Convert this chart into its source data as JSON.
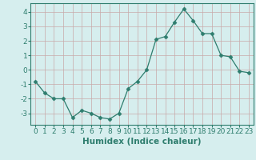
{
  "x": [
    0,
    1,
    2,
    3,
    4,
    5,
    6,
    7,
    8,
    9,
    10,
    11,
    12,
    13,
    14,
    15,
    16,
    17,
    18,
    19,
    20,
    21,
    22,
    23
  ],
  "y": [
    -0.8,
    -1.6,
    -2.0,
    -2.0,
    -3.3,
    -2.8,
    -3.0,
    -3.3,
    -3.4,
    -3.0,
    -1.3,
    -0.8,
    0.0,
    2.1,
    2.3,
    3.3,
    4.2,
    3.4,
    2.5,
    2.5,
    1.0,
    0.9,
    -0.1,
    -0.2
  ],
  "line_color": "#2e7d6e",
  "marker": "D",
  "marker_size": 2.5,
  "bg_color": "#d6eeee",
  "grid_color_major": "#c8a8a8",
  "grid_color_minor": "#e0d0d0",
  "ylabel_ticks": [
    -3,
    -2,
    -1,
    0,
    1,
    2,
    3,
    4
  ],
  "xlabel": "Humidex (Indice chaleur)",
  "xlim": [
    -0.5,
    23.5
  ],
  "ylim": [
    -3.8,
    4.6
  ],
  "tick_fontsize": 6.5,
  "label_fontsize": 7.5
}
